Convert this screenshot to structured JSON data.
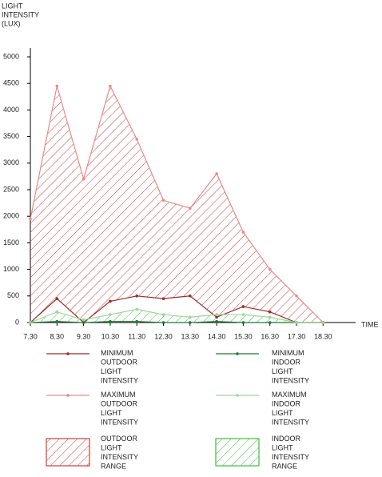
{
  "chart_data": {
    "type": "line",
    "y_label_lines": [
      "LIGHT",
      "INTENSITY",
      "(LUX)"
    ],
    "x_label": "TIME",
    "categories": [
      "7.30",
      "8.30",
      "9.30",
      "10.30",
      "11.30",
      "12.30",
      "13.30",
      "14.30",
      "15.30",
      "16.30",
      "17.30",
      "18.30"
    ],
    "ylim": [
      0,
      5000
    ],
    "yticks": [
      0,
      500,
      1000,
      1500,
      2000,
      2500,
      3000,
      3500,
      4000,
      4500,
      5000
    ],
    "series": [
      {
        "name": "MINIMUM OUTDOOR LIGHT INTENSITY",
        "color": "#9e2a2b",
        "values": [
          0,
          450,
          0,
          400,
          500,
          450,
          500,
          100,
          300,
          200,
          0,
          0
        ]
      },
      {
        "name": "MAXIMUM OUTDOOR LIGHT INTENSITY",
        "color": "#e88a8a",
        "values": [
          1950,
          4450,
          2700,
          4450,
          3450,
          2300,
          2150,
          2800,
          1700,
          1000,
          500,
          0
        ]
      },
      {
        "name": "MINIMUM INDOOR LIGHT INTENSITY",
        "color": "#1b7a34",
        "values": [
          0,
          20,
          0,
          20,
          20,
          0,
          0,
          20,
          0,
          0,
          0,
          0
        ]
      },
      {
        "name": "MAXIMUM INDOOR LIGHT INTENSITY",
        "color": "#9ad89a",
        "values": [
          0,
          200,
          50,
          150,
          250,
          150,
          100,
          150,
          150,
          100,
          0,
          0
        ]
      }
    ],
    "ranges": [
      {
        "name": "OUTDOOR LIGHT INTENSITY RANGE",
        "color": "#d23c3c"
      },
      {
        "name": "INDOOR LIGHT INTENSITY RANGE",
        "color": "#3cbf3c"
      }
    ]
  }
}
